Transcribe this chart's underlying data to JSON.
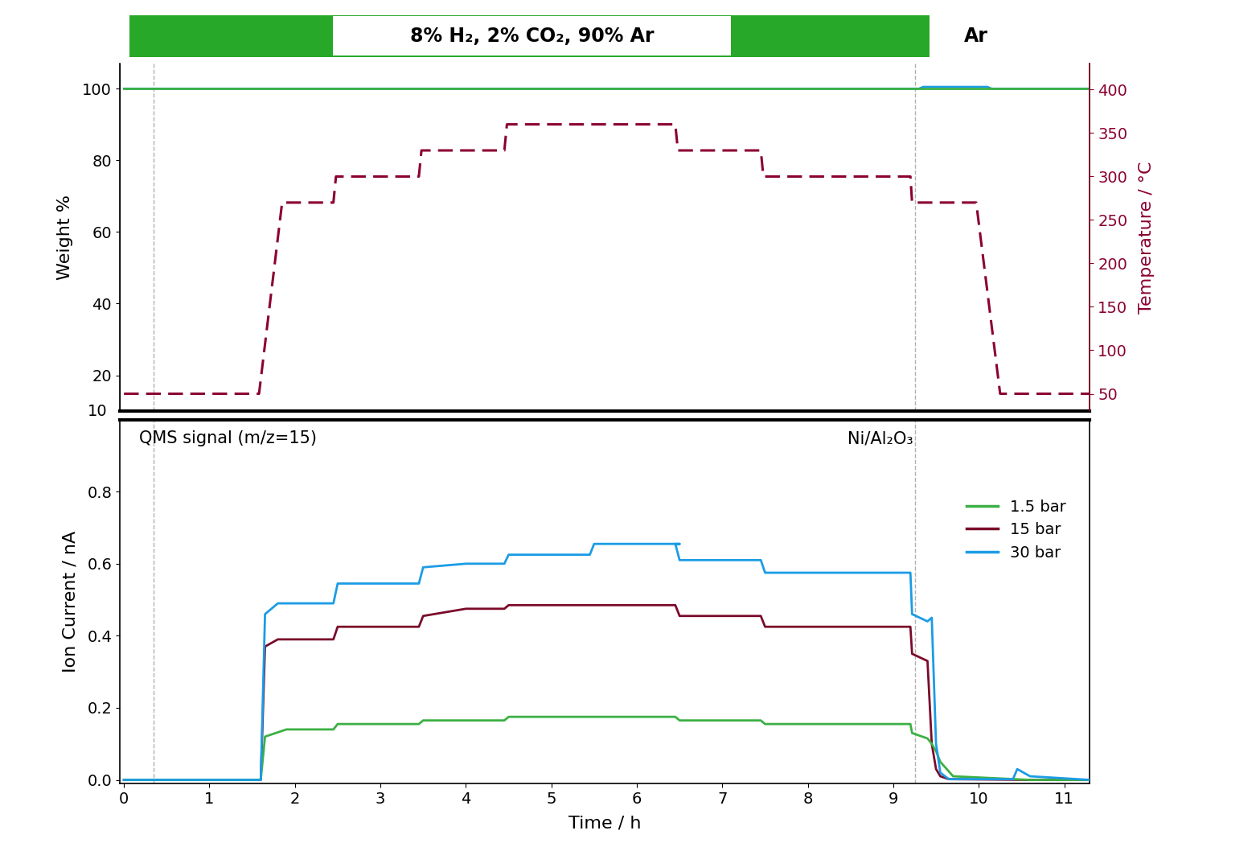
{
  "top_panel": {
    "ylim": [
      10,
      107
    ],
    "yticks": [
      20,
      40,
      60,
      80,
      100
    ],
    "ylabel_left": "Weight %",
    "temp_yticks": [
      50,
      100,
      150,
      200,
      250,
      300,
      350,
      400
    ],
    "temp_ylim": [
      30,
      430
    ],
    "ylabel_right": "Temperature / °C"
  },
  "bottom_panel": {
    "ylim": [
      -0.01,
      1.0
    ],
    "yticks": [
      0.0,
      0.2,
      0.4,
      0.6,
      0.8
    ],
    "ylabel": "Ion Current / nA",
    "xlabel": "Time / h",
    "annotation_left": "QMS signal (m/z=15)",
    "annotation_right": "Ni/Al₂O₃"
  },
  "xticks": [
    0,
    1,
    2,
    3,
    4,
    5,
    6,
    7,
    8,
    9,
    10,
    11
  ],
  "xlim": [
    -0.05,
    11.3
  ],
  "vline1": 0.35,
  "vline2": 9.25,
  "header_label": "8% H₂, 2% CO₂, 90% Ar",
  "ar_label": "Ar",
  "colors": {
    "green_bar": "#28a828",
    "black_bg": "#000000",
    "white_box": "#ffffff",
    "green_line": "#3cb043",
    "dark_red": "#7b0a2a",
    "blue": "#1b9ce5",
    "vline_color": "#b0b0b0",
    "temp_color": "#8b0030"
  },
  "legend_entries": [
    "1.5 bar",
    "15 bar",
    "30 bar"
  ],
  "legend_colors": [
    "#3cb043",
    "#7b0a2a",
    "#1b9ce5"
  ],
  "temp_data": {
    "t": [
      0,
      0.32,
      0.33,
      1.55,
      1.58,
      1.85,
      2.45,
      2.48,
      2.75,
      3.45,
      3.48,
      3.75,
      4.45,
      4.48,
      4.75,
      6.45,
      6.48,
      6.75,
      7.45,
      7.48,
      7.75,
      9.2,
      9.22,
      9.45,
      9.95,
      9.97,
      10.25,
      11.3
    ],
    "T": [
      50,
      50,
      50,
      50,
      50,
      270,
      270,
      300,
      300,
      300,
      330,
      330,
      330,
      360,
      360,
      360,
      330,
      330,
      330,
      300,
      300,
      300,
      270,
      270,
      270,
      270,
      50,
      50
    ]
  },
  "ms_green": {
    "t": [
      0,
      0.33,
      1.6,
      1.65,
      1.9,
      2.45,
      2.5,
      2.9,
      3.45,
      3.5,
      3.9,
      4.45,
      4.5,
      4.9,
      6.45,
      6.5,
      7.0,
      7.45,
      7.5,
      8.0,
      9.2,
      9.22,
      9.4,
      9.45,
      9.5,
      9.55,
      9.7,
      10.6,
      11.3
    ],
    "v": [
      0,
      0,
      0,
      0.12,
      0.14,
      0.14,
      0.155,
      0.155,
      0.155,
      0.165,
      0.165,
      0.165,
      0.175,
      0.175,
      0.175,
      0.165,
      0.165,
      0.165,
      0.155,
      0.155,
      0.155,
      0.13,
      0.115,
      0.1,
      0.08,
      0.05,
      0.01,
      0.0,
      0.0
    ]
  },
  "ms_darkred": {
    "t": [
      0,
      0.33,
      1.6,
      1.65,
      1.8,
      2.45,
      2.5,
      2.9,
      3.45,
      3.5,
      4.0,
      4.45,
      4.5,
      5.2,
      6.45,
      6.5,
      7.0,
      7.45,
      7.5,
      8.5,
      9.2,
      9.22,
      9.4,
      9.45,
      9.5,
      9.55,
      9.65,
      10.6,
      11.3
    ],
    "v": [
      0,
      0,
      0,
      0.37,
      0.39,
      0.39,
      0.425,
      0.425,
      0.425,
      0.455,
      0.475,
      0.475,
      0.485,
      0.485,
      0.485,
      0.455,
      0.455,
      0.455,
      0.425,
      0.425,
      0.425,
      0.35,
      0.33,
      0.1,
      0.03,
      0.01,
      0.002,
      0.0,
      0.0
    ]
  },
  "ms_blue": {
    "t": [
      0,
      0.33,
      1.6,
      1.65,
      1.8,
      2.45,
      2.5,
      2.9,
      3.45,
      3.5,
      4.0,
      4.45,
      4.5,
      4.9,
      5.45,
      5.5,
      6.5,
      6.45,
      6.5,
      7.0,
      7.45,
      7.5,
      8.5,
      9.2,
      9.22,
      9.4,
      9.45,
      9.5,
      9.55,
      9.65,
      10.4,
      10.45,
      10.6,
      11.3
    ],
    "v": [
      0,
      0,
      0,
      0.46,
      0.49,
      0.49,
      0.545,
      0.545,
      0.545,
      0.59,
      0.6,
      0.6,
      0.625,
      0.625,
      0.625,
      0.655,
      0.655,
      0.655,
      0.61,
      0.61,
      0.61,
      0.575,
      0.575,
      0.575,
      0.46,
      0.44,
      0.45,
      0.1,
      0.02,
      0.002,
      0.002,
      0.03,
      0.01,
      0.0
    ]
  },
  "weight_green": {
    "t": [
      0,
      0.0,
      0.33,
      0.34,
      11.3
    ],
    "w": [
      100,
      100,
      100,
      100,
      100
    ]
  },
  "weight_blue": {
    "t": [
      0,
      0.01,
      0.33,
      0.34,
      9.3,
      9.35,
      10.1,
      10.15,
      11.3
    ],
    "w": [
      100,
      100,
      100,
      100,
      100,
      100.5,
      100.5,
      100,
      100
    ]
  }
}
